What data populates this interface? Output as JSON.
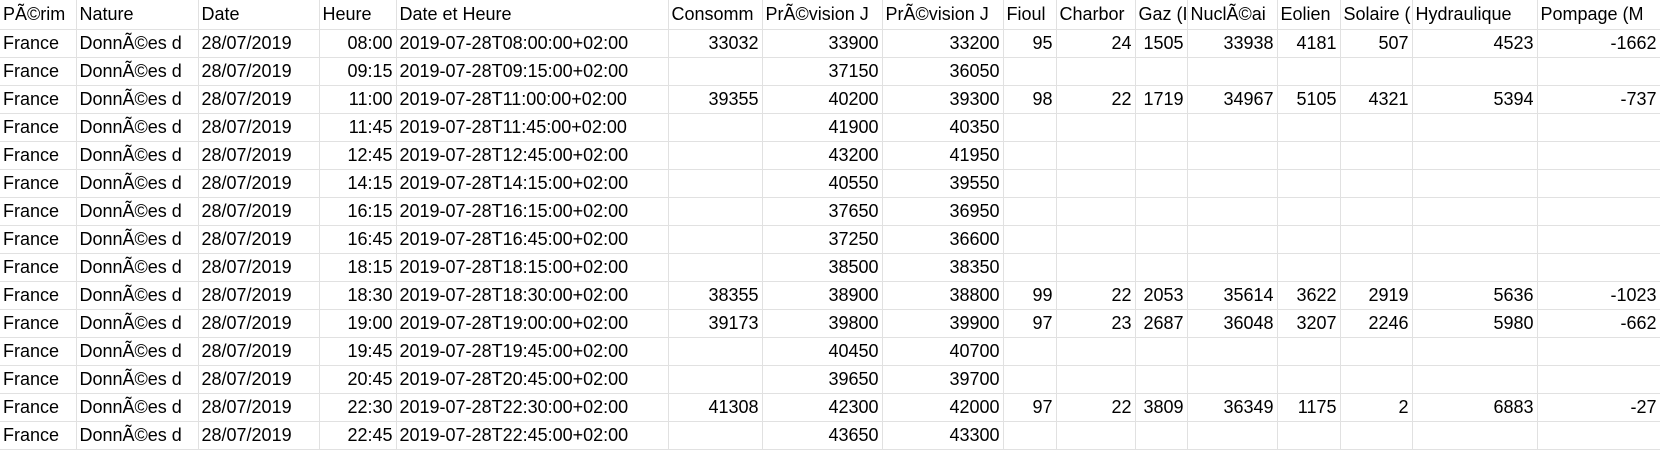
{
  "columns": [
    "PÃ©rim",
    "Nature",
    "Date",
    "Heure",
    "Date et Heure",
    "Consomm",
    "PrÃ©vision J",
    "PrÃ©vision J",
    "Fioul",
    "Charbor",
    "Gaz (I",
    "NuclÃ©ai",
    "Eolien",
    "Solaire (",
    "Hydraulique",
    "Pompage (M"
  ],
  "rows": [
    [
      "France",
      "DonnÃ©es d",
      "28/07/2019",
      "08:00",
      "2019-07-28T08:00:00+02:00",
      "33032",
      "33900",
      "33200",
      "95",
      "24",
      "1505",
      "33938",
      "4181",
      "507",
      "4523",
      "-1662"
    ],
    [
      "France",
      "DonnÃ©es d",
      "28/07/2019",
      "09:15",
      "2019-07-28T09:15:00+02:00",
      "",
      "37150",
      "36050",
      "",
      "",
      "",
      "",
      "",
      "",
      "",
      ""
    ],
    [
      "France",
      "DonnÃ©es d",
      "28/07/2019",
      "11:00",
      "2019-07-28T11:00:00+02:00",
      "39355",
      "40200",
      "39300",
      "98",
      "22",
      "1719",
      "34967",
      "5105",
      "4321",
      "5394",
      "-737"
    ],
    [
      "France",
      "DonnÃ©es d",
      "28/07/2019",
      "11:45",
      "2019-07-28T11:45:00+02:00",
      "",
      "41900",
      "40350",
      "",
      "",
      "",
      "",
      "",
      "",
      "",
      ""
    ],
    [
      "France",
      "DonnÃ©es d",
      "28/07/2019",
      "12:45",
      "2019-07-28T12:45:00+02:00",
      "",
      "43200",
      "41950",
      "",
      "",
      "",
      "",
      "",
      "",
      "",
      ""
    ],
    [
      "France",
      "DonnÃ©es d",
      "28/07/2019",
      "14:15",
      "2019-07-28T14:15:00+02:00",
      "",
      "40550",
      "39550",
      "",
      "",
      "",
      "",
      "",
      "",
      "",
      ""
    ],
    [
      "France",
      "DonnÃ©es d",
      "28/07/2019",
      "16:15",
      "2019-07-28T16:15:00+02:00",
      "",
      "37650",
      "36950",
      "",
      "",
      "",
      "",
      "",
      "",
      "",
      ""
    ],
    [
      "France",
      "DonnÃ©es d",
      "28/07/2019",
      "16:45",
      "2019-07-28T16:45:00+02:00",
      "",
      "37250",
      "36600",
      "",
      "",
      "",
      "",
      "",
      "",
      "",
      ""
    ],
    [
      "France",
      "DonnÃ©es d",
      "28/07/2019",
      "18:15",
      "2019-07-28T18:15:00+02:00",
      "",
      "38500",
      "38350",
      "",
      "",
      "",
      "",
      "",
      "",
      "",
      ""
    ],
    [
      "France",
      "DonnÃ©es d",
      "28/07/2019",
      "18:30",
      "2019-07-28T18:30:00+02:00",
      "38355",
      "38900",
      "38800",
      "99",
      "22",
      "2053",
      "35614",
      "3622",
      "2919",
      "5636",
      "-1023"
    ],
    [
      "France",
      "DonnÃ©es d",
      "28/07/2019",
      "19:00",
      "2019-07-28T19:00:00+02:00",
      "39173",
      "39800",
      "39900",
      "97",
      "23",
      "2687",
      "36048",
      "3207",
      "2246",
      "5980",
      "-662"
    ],
    [
      "France",
      "DonnÃ©es d",
      "28/07/2019",
      "19:45",
      "2019-07-28T19:45:00+02:00",
      "",
      "40450",
      "40700",
      "",
      "",
      "",
      "",
      "",
      "",
      "",
      ""
    ],
    [
      "France",
      "DonnÃ©es d",
      "28/07/2019",
      "20:45",
      "2019-07-28T20:45:00+02:00",
      "",
      "39650",
      "39700",
      "",
      "",
      "",
      "",
      "",
      "",
      "",
      ""
    ],
    [
      "France",
      "DonnÃ©es d",
      "28/07/2019",
      "22:30",
      "2019-07-28T22:30:00+02:00",
      "41308",
      "42300",
      "42000",
      "97",
      "22",
      "3809",
      "36349",
      "1175",
      "2",
      "6883",
      "-27"
    ],
    [
      "France",
      "DonnÃ©es d",
      "28/07/2019",
      "22:45",
      "2019-07-28T22:45:00+02:00",
      "",
      "43650",
      "43300",
      "",
      "",
      "",
      "",
      "",
      "",
      "",
      ""
    ]
  ]
}
